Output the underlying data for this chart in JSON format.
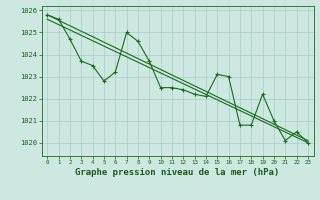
{
  "title": "Graphe pression niveau de la mer (hPa)",
  "background_color": "#cce8e0",
  "grid_color": "#aacccc",
  "line_color": "#1a6b1a",
  "text_color": "#1a5c1a",
  "ylim": [
    1019.4,
    1026.2
  ],
  "xlim": [
    -0.5,
    23.5
  ],
  "yticks": [
    1020,
    1021,
    1022,
    1023,
    1024,
    1025,
    1026
  ],
  "xticks": [
    0,
    1,
    2,
    3,
    4,
    5,
    6,
    7,
    8,
    9,
    10,
    11,
    12,
    13,
    14,
    15,
    16,
    17,
    18,
    19,
    20,
    21,
    22,
    23
  ],
  "series1": [
    1025.8,
    1025.6,
    1024.7,
    1023.7,
    1023.5,
    1022.8,
    1023.2,
    1025.0,
    1024.6,
    1023.7,
    1022.5,
    1022.5,
    1022.4,
    1022.2,
    1022.1,
    1023.1,
    1023.0,
    1020.8,
    1020.8,
    1022.2,
    1021.0,
    1020.1,
    1020.5,
    1020.0
  ],
  "trend1_x": [
    0,
    23
  ],
  "trend1_y": [
    1025.8,
    1020.1
  ],
  "trend2_x": [
    0,
    23
  ],
  "trend2_y": [
    1025.6,
    1020.0
  ],
  "ylabel_fontsize": 5.5,
  "xlabel_fontsize": 6.5
}
